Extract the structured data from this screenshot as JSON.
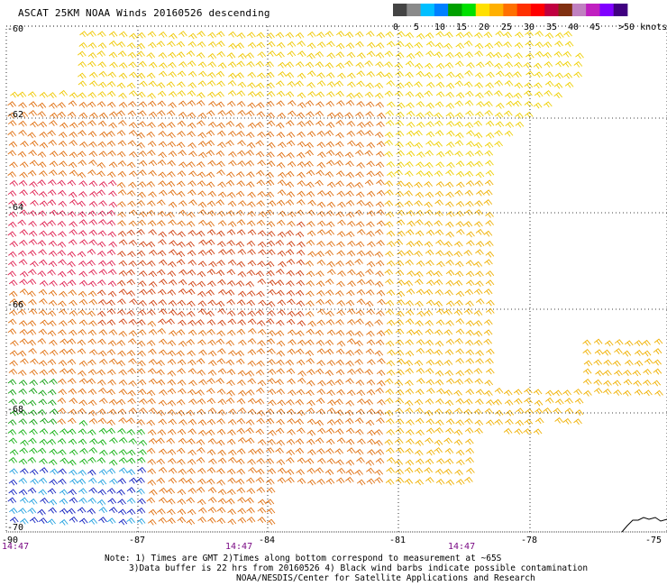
{
  "title": "ASCAT 25KM NOAA Winds 20160526 descending",
  "legend": {
    "labels": [
      "0",
      "5",
      "10",
      "15",
      "20",
      "25",
      "30",
      "35",
      "40",
      "45",
      ">50 knots"
    ],
    "colors": [
      "#444444",
      "#8a8a8a",
      "#00bfff",
      "#0080ff",
      "#00a000",
      "#00e000",
      "#ffe000",
      "#ffb000",
      "#ff7000",
      "#ff3000",
      "#ff0000",
      "#c00040",
      "#803010",
      "#c080c0",
      "#c020c0",
      "#8000ff",
      "#400080"
    ]
  },
  "axes": {
    "lon_ticks": [
      "-90",
      "-87",
      "-84",
      "-81",
      "-78",
      "-75"
    ],
    "lat_ticks": [
      "-60",
      "-62",
      "-64",
      "-66",
      "-68",
      "-70"
    ],
    "lon_range": [
      -90,
      -75
    ],
    "lat_range": [
      -60,
      -70
    ],
    "grid": "dotted"
  },
  "times": [
    "14:47",
    "14:47",
    "14:47"
  ],
  "notes": {
    "line1": "Note: 1) Times are GMT 2)Times along bottom correspond to measurement at ~65S",
    "line2": "3)Data buffer is 22 hrs from 20160526 4) Black wind barbs indicate possible contamination",
    "line3": "NOAA/NESDIS/Center for Satellite Applications and Research"
  }
}
